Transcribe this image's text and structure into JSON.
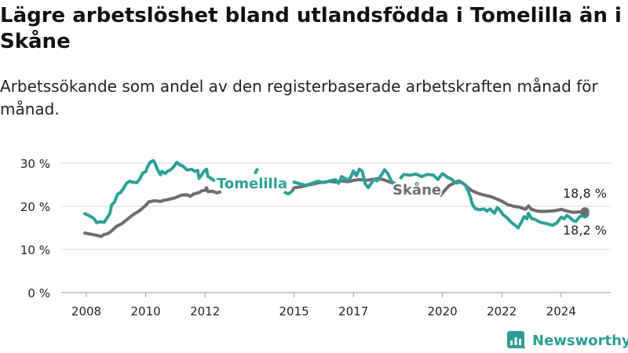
{
  "title": "Lägre arbetslöshet bland utlandsfödda i Tomelilla än i Skåne",
  "subtitle": "Arbetssökande som andel av den registerbaserade arbetskraften månad för månad.",
  "brand": {
    "name": "Newsworthy",
    "icon": "newsworthy-logo-icon"
  },
  "colors": {
    "tomelilla": "#2ba198",
    "skane": "#706b73",
    "grid": "#d9d9d9",
    "text": "#222222"
  },
  "chart_data": {
    "type": "line",
    "title": "Lägre arbetslöshet bland utlandsfödda i Tomelilla än i Skåne",
    "subtitle": "Arbetssökande som andel av den registerbaserade arbetskraften månad för månad.",
    "xlabel": "",
    "ylabel": "",
    "ylim": [
      0,
      32
    ],
    "xlim": [
      2008,
      2025.5
    ],
    "grid": "horizontal",
    "x_ticks": [
      {
        "value": 2008,
        "label": "2008"
      },
      {
        "value": 2010,
        "label": "2010"
      },
      {
        "value": 2012,
        "label": "2012"
      },
      {
        "value": 2015,
        "label": "2015"
      },
      {
        "value": 2017,
        "label": "2017"
      },
      {
        "value": 2020,
        "label": "2020"
      },
      {
        "value": 2022,
        "label": "2022"
      },
      {
        "value": 2024,
        "label": "2024"
      }
    ],
    "y_ticks": [
      {
        "value": 0,
        "label": "0 %"
      },
      {
        "value": 10,
        "label": "10 %"
      },
      {
        "value": 20,
        "label": "20 %"
      },
      {
        "value": 30,
        "label": "30 %"
      }
    ],
    "series": [
      {
        "name": "Tomelilla",
        "color": "#2ba198",
        "points": [
          [
            2007.95,
            18.3
          ],
          [
            2008.1,
            17.8
          ],
          [
            2008.25,
            17.2
          ],
          [
            2008.35,
            16.2
          ],
          [
            2008.45,
            16.4
          ],
          [
            2008.6,
            16.3
          ],
          [
            2008.7,
            17.3
          ],
          [
            2008.8,
            18.5
          ],
          [
            2008.85,
            20.3
          ],
          [
            2008.95,
            21.0
          ],
          [
            2009.05,
            22.8
          ],
          [
            2009.15,
            23.2
          ],
          [
            2009.25,
            24.1
          ],
          [
            2009.35,
            25.3
          ],
          [
            2009.45,
            25.8
          ],
          [
            2009.55,
            25.6
          ],
          [
            2009.7,
            25.5
          ],
          [
            2009.8,
            26.3
          ],
          [
            2009.9,
            27.7
          ],
          [
            2010.0,
            28.0
          ],
          [
            2010.05,
            29.0
          ],
          [
            2010.15,
            30.2
          ],
          [
            2010.25,
            30.6
          ],
          [
            2010.3,
            30.2
          ],
          [
            2010.4,
            28.5
          ],
          [
            2010.5,
            27.3
          ],
          [
            2010.55,
            28.1
          ],
          [
            2010.65,
            27.6
          ],
          [
            2010.75,
            28.2
          ],
          [
            2010.85,
            28.5
          ],
          [
            2010.95,
            29.2
          ],
          [
            2011.05,
            30.2
          ],
          [
            2011.15,
            29.6
          ],
          [
            2011.25,
            29.3
          ],
          [
            2011.4,
            28.4
          ],
          [
            2011.55,
            28.6
          ],
          [
            2011.65,
            28.1
          ],
          [
            2011.75,
            28.3
          ],
          [
            2011.8,
            26.5
          ],
          [
            2011.85,
            26.9
          ],
          [
            2011.95,
            28.0
          ],
          [
            2012.05,
            28.6
          ],
          [
            2012.1,
            26.9
          ],
          [
            2012.2,
            26.5
          ],
          [
            2012.3,
            26.0
          ],
          [
            2012.35,
            null
          ],
          [
            2013.7,
            27.8
          ],
          [
            2013.75,
            28.5
          ],
          [
            2013.8,
            null
          ],
          [
            2014.7,
            23.2
          ],
          [
            2014.8,
            22.9
          ],
          [
            2014.9,
            23.3
          ],
          [
            2014.95,
            null
          ],
          [
            2015.0,
            25.6
          ],
          [
            2015.2,
            25.2
          ],
          [
            2015.4,
            24.9
          ],
          [
            2015.6,
            25.3
          ],
          [
            2015.8,
            25.8
          ],
          [
            2016.0,
            25.5
          ],
          [
            2016.2,
            25.9
          ],
          [
            2016.4,
            26.2
          ],
          [
            2016.5,
            25.3
          ],
          [
            2016.6,
            26.9
          ],
          [
            2016.8,
            26.1
          ],
          [
            2016.9,
            26.6
          ],
          [
            2017.0,
            28.2
          ],
          [
            2017.1,
            27.1
          ],
          [
            2017.2,
            28.6
          ],
          [
            2017.3,
            28.1
          ],
          [
            2017.4,
            25.2
          ],
          [
            2017.5,
            24.3
          ],
          [
            2017.6,
            25.3
          ],
          [
            2017.7,
            26.3
          ],
          [
            2017.8,
            25.9
          ],
          [
            2017.95,
            27.3
          ],
          [
            2018.05,
            28.5
          ],
          [
            2018.15,
            27.7
          ],
          [
            2018.3,
            25.6
          ],
          [
            2018.4,
            25.3
          ],
          [
            2018.45,
            null
          ],
          [
            2018.6,
            26.6
          ],
          [
            2018.7,
            27.4
          ],
          [
            2018.9,
            27.2
          ],
          [
            2019.1,
            27.5
          ],
          [
            2019.3,
            26.9
          ],
          [
            2019.5,
            27.4
          ],
          [
            2019.7,
            27.2
          ],
          [
            2019.85,
            26.2
          ],
          [
            2020.0,
            27.6
          ],
          [
            2020.15,
            26.8
          ],
          [
            2020.3,
            26.3
          ],
          [
            2020.45,
            25.4
          ],
          [
            2020.6,
            25.6
          ],
          [
            2020.75,
            25.1
          ],
          [
            2020.85,
            23.9
          ],
          [
            2020.95,
            22.0
          ],
          [
            2021.0,
            20.6
          ],
          [
            2021.1,
            19.5
          ],
          [
            2021.25,
            19.2
          ],
          [
            2021.4,
            19.4
          ],
          [
            2021.5,
            18.9
          ],
          [
            2021.6,
            19.4
          ],
          [
            2021.75,
            18.4
          ],
          [
            2021.85,
            19.7
          ],
          [
            2021.95,
            19.0
          ],
          [
            2022.05,
            18.0
          ],
          [
            2022.15,
            17.5
          ],
          [
            2022.3,
            16.4
          ],
          [
            2022.45,
            15.6
          ],
          [
            2022.55,
            15.0
          ],
          [
            2022.65,
            16.2
          ],
          [
            2022.75,
            17.6
          ],
          [
            2022.85,
            17.1
          ],
          [
            2022.9,
            18.4
          ],
          [
            2023.0,
            17.2
          ],
          [
            2023.1,
            17.0
          ],
          [
            2023.3,
            16.3
          ],
          [
            2023.5,
            16.0
          ],
          [
            2023.7,
            15.6
          ],
          [
            2023.85,
            16.1
          ],
          [
            2024.0,
            17.5
          ],
          [
            2024.1,
            17.1
          ],
          [
            2024.2,
            17.9
          ],
          [
            2024.3,
            17.4
          ],
          [
            2024.4,
            16.7
          ],
          [
            2024.5,
            16.5
          ],
          [
            2024.6,
            17.4
          ],
          [
            2024.7,
            17.9
          ],
          [
            2024.8,
            18.2
          ]
        ],
        "end_label": "18,2 %",
        "line_label": "Tomelilla"
      },
      {
        "name": "Skåne",
        "color": "#706b73",
        "points": [
          [
            2007.95,
            13.8
          ],
          [
            2008.1,
            13.6
          ],
          [
            2008.2,
            13.5
          ],
          [
            2008.4,
            13.2
          ],
          [
            2008.5,
            13.0
          ],
          [
            2008.6,
            13.5
          ],
          [
            2008.7,
            13.6
          ],
          [
            2008.8,
            14.0
          ],
          [
            2008.9,
            14.6
          ],
          [
            2009.0,
            15.3
          ],
          [
            2009.2,
            16.0
          ],
          [
            2009.4,
            17.1
          ],
          [
            2009.6,
            18.2
          ],
          [
            2009.8,
            19.0
          ],
          [
            2010.0,
            20.2
          ],
          [
            2010.1,
            21.0
          ],
          [
            2010.3,
            21.3
          ],
          [
            2010.5,
            21.1
          ],
          [
            2010.6,
            21.4
          ],
          [
            2010.7,
            21.5
          ],
          [
            2010.9,
            21.8
          ],
          [
            2011.0,
            22.0
          ],
          [
            2011.2,
            22.6
          ],
          [
            2011.4,
            22.7
          ],
          [
            2011.5,
            22.3
          ],
          [
            2011.6,
            22.8
          ],
          [
            2011.8,
            23.2
          ],
          [
            2011.9,
            23.6
          ],
          [
            2012.0,
            23.7
          ],
          [
            2012.05,
            24.3
          ],
          [
            2012.1,
            23.4
          ],
          [
            2012.25,
            23.5
          ],
          [
            2012.4,
            23.1
          ],
          [
            2012.5,
            23.3
          ],
          [
            2012.55,
            null
          ],
          [
            2014.95,
            23.7
          ],
          [
            2015.0,
            24.3
          ],
          [
            2015.2,
            24.5
          ],
          [
            2015.4,
            24.8
          ],
          [
            2015.6,
            25.1
          ],
          [
            2015.8,
            25.4
          ],
          [
            2016.0,
            25.6
          ],
          [
            2016.2,
            25.8
          ],
          [
            2016.4,
            25.6
          ],
          [
            2016.6,
            25.9
          ],
          [
            2016.8,
            25.7
          ],
          [
            2017.0,
            26.0
          ],
          [
            2017.2,
            26.2
          ],
          [
            2017.4,
            26.0
          ],
          [
            2017.6,
            26.2
          ],
          [
            2017.8,
            26.4
          ],
          [
            2018.0,
            26.2
          ],
          [
            2018.2,
            25.7
          ],
          [
            2018.4,
            25.2
          ],
          [
            2018.5,
            24.7
          ],
          [
            2018.55,
            null
          ],
          [
            2019.95,
            22.6
          ],
          [
            2020.1,
            23.9
          ],
          [
            2020.25,
            24.9
          ],
          [
            2020.4,
            25.4
          ],
          [
            2020.55,
            25.9
          ],
          [
            2020.7,
            25.3
          ],
          [
            2020.85,
            24.4
          ],
          [
            2021.0,
            23.6
          ],
          [
            2021.2,
            23.0
          ],
          [
            2021.4,
            22.6
          ],
          [
            2021.6,
            22.3
          ],
          [
            2021.8,
            21.8
          ],
          [
            2022.0,
            21.2
          ],
          [
            2022.2,
            20.4
          ],
          [
            2022.4,
            20.0
          ],
          [
            2022.6,
            19.8
          ],
          [
            2022.8,
            19.3
          ],
          [
            2022.9,
            20.1
          ],
          [
            2023.0,
            19.3
          ],
          [
            2023.2,
            18.9
          ],
          [
            2023.4,
            18.8
          ],
          [
            2023.6,
            18.9
          ],
          [
            2023.8,
            19.0
          ],
          [
            2024.0,
            19.3
          ],
          [
            2024.2,
            18.9
          ],
          [
            2024.4,
            18.6
          ],
          [
            2024.6,
            18.7
          ],
          [
            2024.8,
            18.8
          ]
        ],
        "end_label": "18,8 %",
        "line_label": "Skåne"
      }
    ]
  }
}
